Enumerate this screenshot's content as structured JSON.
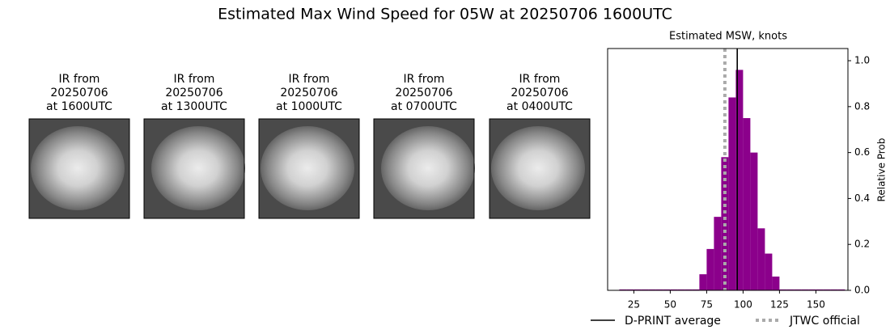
{
  "chart_data": {
    "type": "histogram",
    "title": "Estimated Max Wind Speed for 05W at 20250706 1600UTC",
    "images": [
      {
        "caption": [
          "IR from",
          "20250706",
          "at 1600UTC"
        ]
      },
      {
        "caption": [
          "IR from",
          "20250706",
          "at 1300UTC"
        ]
      },
      {
        "caption": [
          "IR from",
          "20250706",
          "at 1000UTC"
        ]
      },
      {
        "caption": [
          "IR from",
          "20250706",
          "at 0700UTC"
        ]
      },
      {
        "caption": [
          "IR from",
          "20250706",
          "at 0400UTC"
        ]
      }
    ],
    "subtitle": "Estimated MSW, knots",
    "ylabel": "Relative Prob",
    "color": "#8b008b",
    "bins": [
      15,
      20,
      25,
      30,
      35,
      40,
      45,
      50,
      55,
      60,
      65,
      70,
      75,
      80,
      85,
      90,
      95,
      100,
      105,
      110,
      115,
      120,
      125,
      130,
      135,
      140,
      145,
      150,
      155,
      160,
      165,
      170
    ],
    "counts": [
      0.004,
      0.004,
      0.004,
      0.004,
      0.004,
      0.004,
      0.004,
      0.004,
      0.004,
      0.004,
      0.004,
      0.07,
      0.18,
      0.32,
      0.58,
      0.84,
      0.96,
      0.75,
      0.6,
      0.27,
      0.16,
      0.06,
      0.004,
      0.004,
      0.004,
      0.004,
      0.004,
      0.004,
      0.004,
      0.004,
      0.004
    ],
    "xlim": [
      7,
      172
    ],
    "ylim": [
      0,
      1.053
    ],
    "xticks": [
      25,
      50,
      75,
      100,
      125,
      150
    ],
    "yticks": [
      {
        "value": 0,
        "label": "0.0"
      },
      0.2,
      0.4,
      0.6,
      0.8,
      {
        "value": 1,
        "label": "1.0"
      }
    ],
    "lines": [
      {
        "name": "D-PRINT average",
        "value": 96,
        "color": "#000000",
        "style": "solid"
      },
      {
        "name": "JTWC official",
        "value": 87.5,
        "color": "#aaaaaa",
        "style": "dotted"
      }
    ]
  }
}
